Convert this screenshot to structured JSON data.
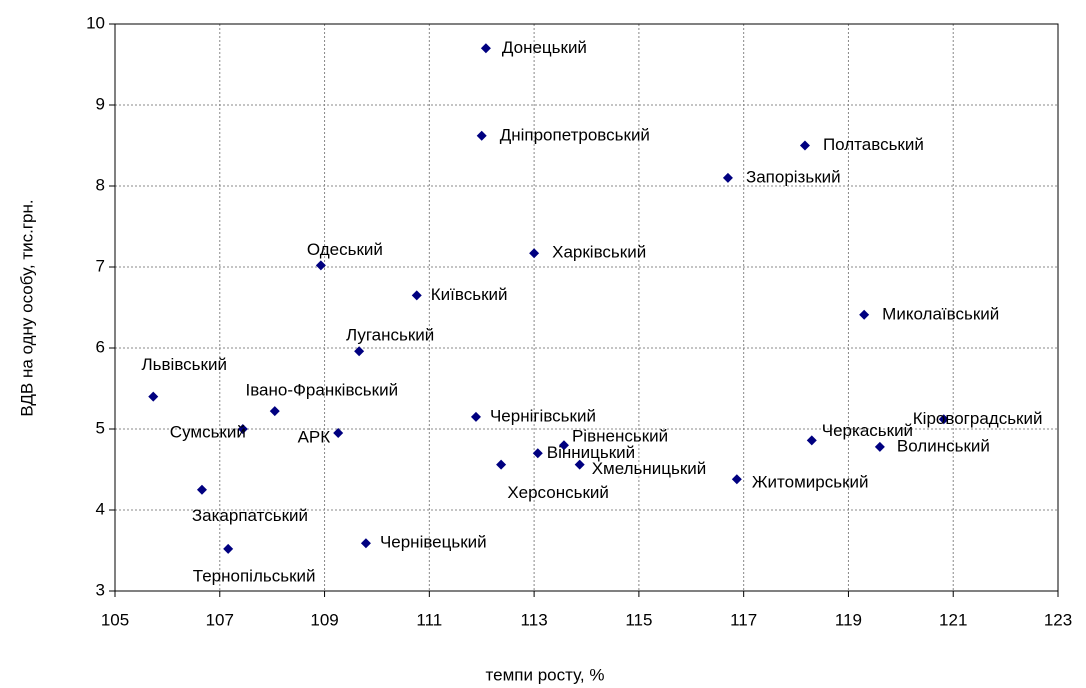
{
  "chart_data": {
    "type": "scatter",
    "xlabel": "темпи росту, %",
    "ylabel": "ВДВ на одну особу, тис.грн.",
    "color": "#000080",
    "grid": true,
    "xlim": [
      105,
      123
    ],
    "xticks": [
      105,
      107,
      109,
      111,
      113,
      115,
      117,
      119,
      121,
      123
    ],
    "ylim": [
      3,
      10
    ],
    "yticks": [
      3,
      4,
      5,
      6,
      7,
      8,
      9,
      10
    ],
    "labels": [
      "Донецький",
      "Полтавський",
      "Дніпропетровський",
      "Запорізький",
      "Харківський",
      "Одеський",
      "Київський",
      "Миколаївський",
      "Луганський",
      "Львівський",
      "Івано-Франківський",
      "Чернігівський",
      "Кіровоградський",
      "Сумський",
      "АРК",
      "Черкаський",
      "Рівненський",
      "Волинський",
      "Вінницький",
      "Херсонський",
      "Хмельницький",
      "Житомирський",
      "Закарпатський",
      "Чернівецький",
      "Тернопільський"
    ],
    "x": [
      112.08,
      118.17,
      112.0,
      116.7,
      113.0,
      108.93,
      110.76,
      119.3,
      109.66,
      105.73,
      108.05,
      111.89,
      120.82,
      107.44,
      109.26,
      118.3,
      113.57,
      119.6,
      113.07,
      112.37,
      113.87,
      116.87,
      106.66,
      109.79,
      107.16
    ],
    "y": [
      9.7,
      8.5,
      8.62,
      8.1,
      7.17,
      7.02,
      6.65,
      6.41,
      5.96,
      5.4,
      5.22,
      5.15,
      5.12,
      5.0,
      4.95,
      4.86,
      4.8,
      4.78,
      4.7,
      4.56,
      4.56,
      4.38,
      4.25,
      3.59,
      3.52
    ]
  }
}
